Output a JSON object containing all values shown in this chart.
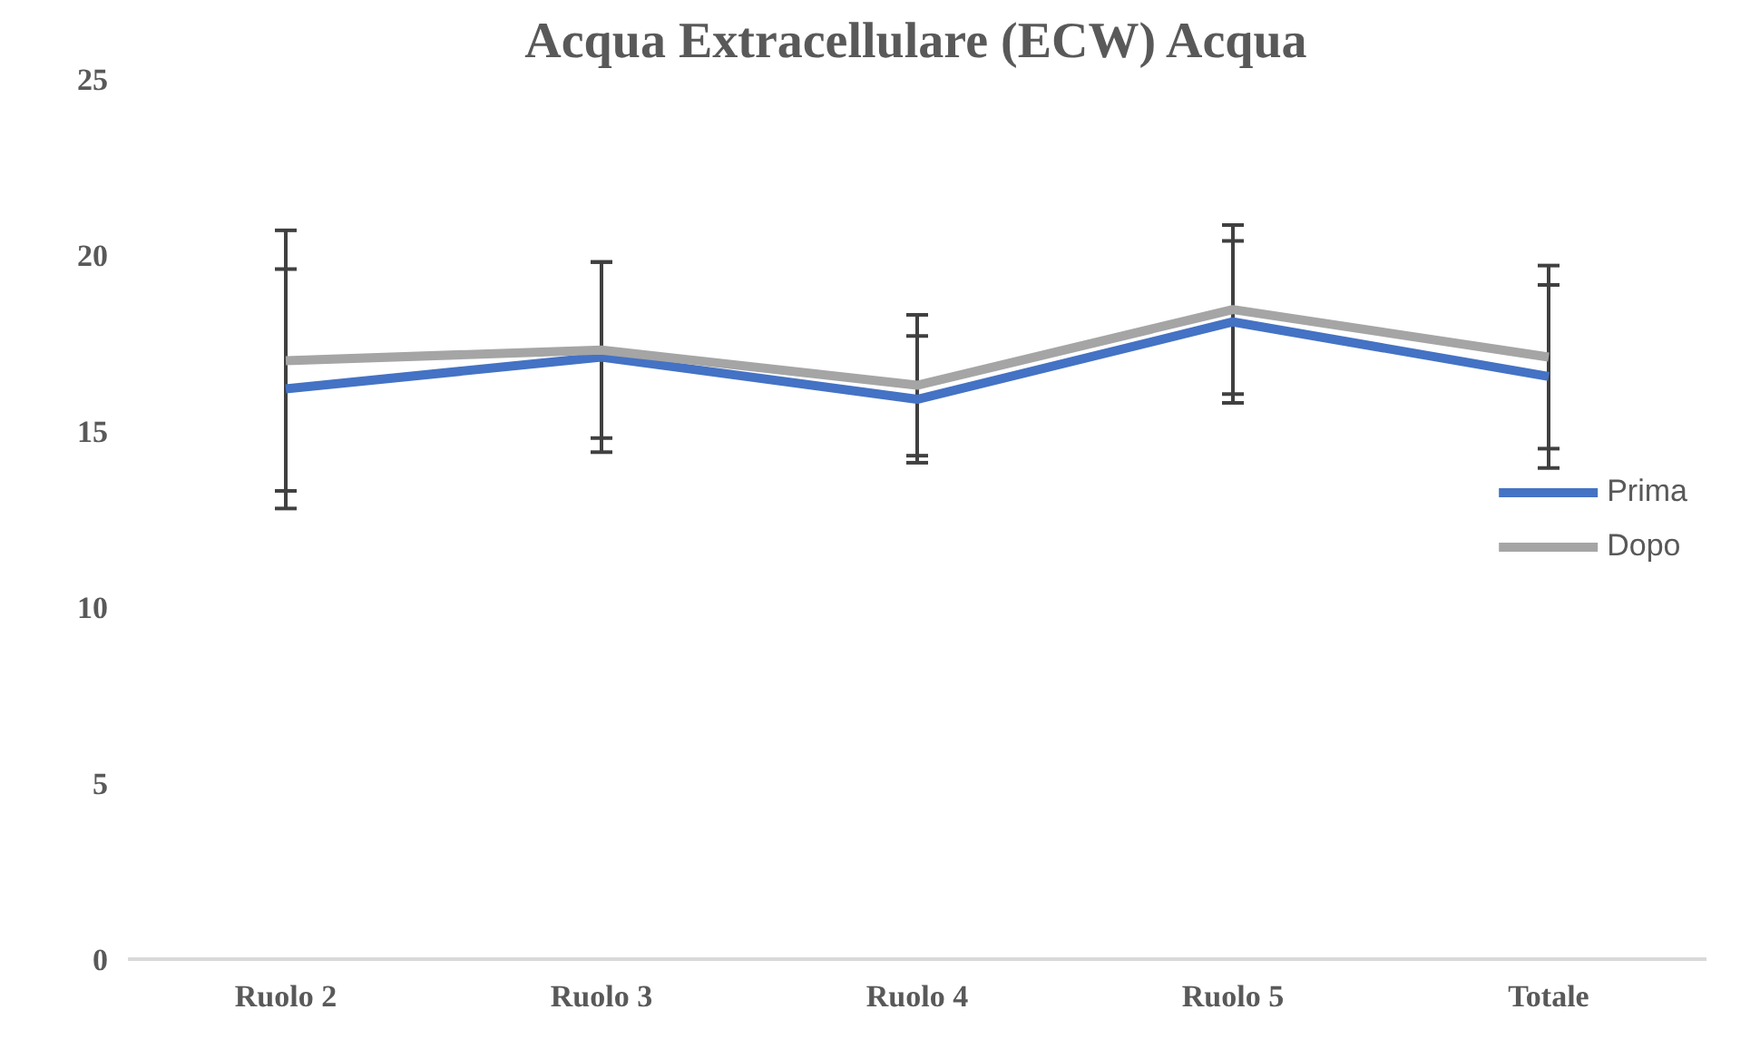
{
  "chart_data": {
    "type": "line",
    "title": "Acqua Extracellulare (ECW) Acqua",
    "categories": [
      "Ruolo 2",
      "Ruolo 3",
      "Ruolo 4",
      "Ruolo 5",
      "Totale"
    ],
    "series": [
      {
        "name": "Prima",
        "color": "#4472c4",
        "values": [
          16.2,
          17.1,
          15.9,
          18.1,
          16.55
        ],
        "errors": [
          3.4,
          2.7,
          1.8,
          2.3,
          2.6
        ]
      },
      {
        "name": "Dopo",
        "color": "#a5a5a5",
        "values": [
          17.0,
          17.3,
          16.3,
          18.45,
          17.1
        ],
        "errors": [
          3.7,
          2.5,
          2.0,
          2.4,
          2.6
        ]
      }
    ],
    "ylim": [
      0,
      25
    ],
    "yticks": [
      0,
      5,
      10,
      15,
      20,
      25
    ],
    "grid": false,
    "legend": "right",
    "marker": "none"
  }
}
